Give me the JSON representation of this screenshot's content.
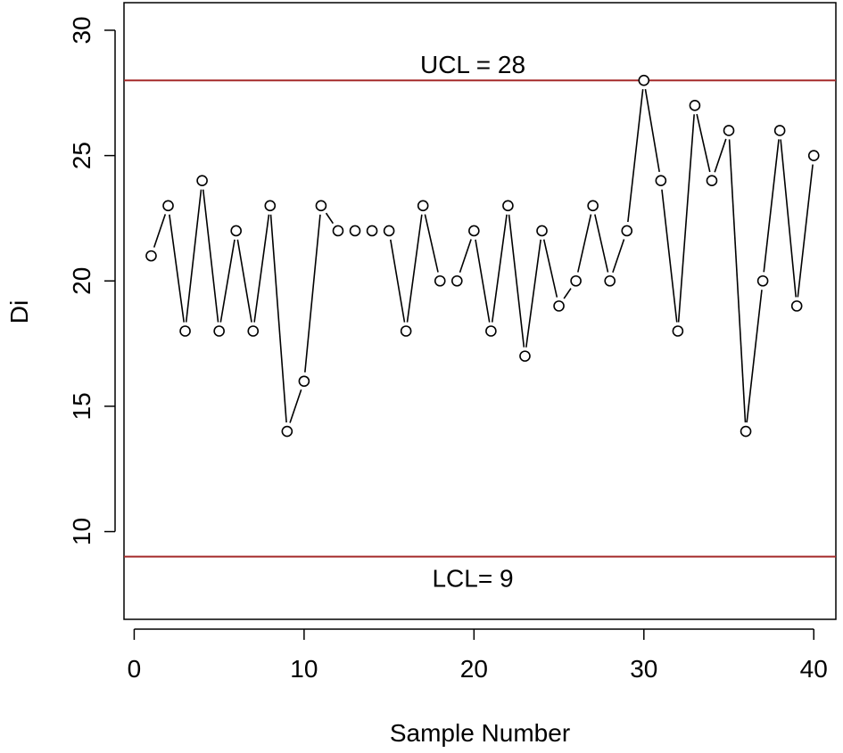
{
  "chart_data": {
    "type": "line",
    "xlabel": "Sample Number",
    "ylabel": "Di",
    "xlim": [
      -0.6,
      41.3
    ],
    "ylim": [
      6.5,
      31.1
    ],
    "xticks": [
      0,
      10,
      20,
      30,
      40
    ],
    "yticks": [
      10,
      15,
      20,
      25,
      30
    ],
    "grid": false,
    "x": [
      1,
      2,
      3,
      4,
      5,
      6,
      7,
      8,
      9,
      10,
      11,
      12,
      13,
      14,
      15,
      16,
      17,
      18,
      19,
      20,
      21,
      22,
      23,
      24,
      25,
      26,
      27,
      28,
      29,
      30,
      31,
      32,
      33,
      34,
      35,
      36,
      37,
      38,
      39,
      40
    ],
    "values": [
      21,
      23,
      18,
      24,
      18,
      22,
      18,
      23,
      14,
      16,
      23,
      22,
      22,
      22,
      22,
      18,
      23,
      20,
      20,
      22,
      18,
      23,
      17,
      22,
      19,
      20,
      23,
      20,
      22,
      28,
      24,
      18,
      27,
      24,
      26,
      14,
      20,
      26,
      19,
      25
    ],
    "control_lines": [
      {
        "label": "UCL = 28",
        "value": 28,
        "color": "#a52a2a"
      },
      {
        "label": "LCL= 9",
        "value": 9,
        "color": "#a52a2a"
      }
    ]
  }
}
